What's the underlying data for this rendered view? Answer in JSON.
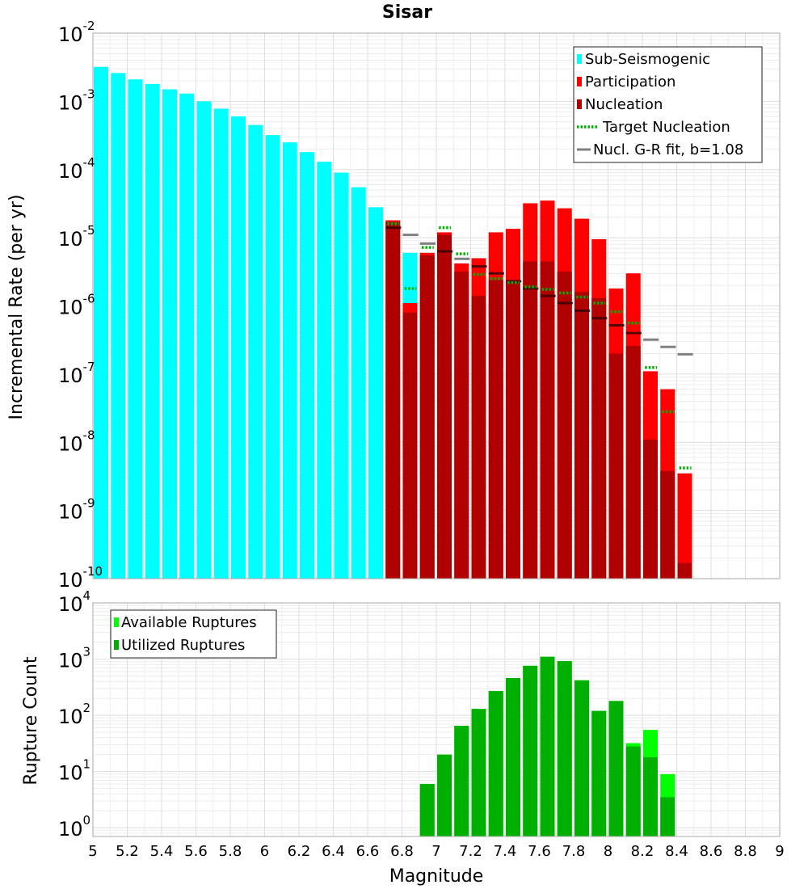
{
  "chart_data": [
    {
      "type": "bar",
      "title": "Sisar",
      "xlabel": "",
      "ylabel": "Incremental Rate (per yr)",
      "yscale": "log",
      "xlim": [
        5,
        9
      ],
      "ylim": [
        1e-10,
        0.01
      ],
      "grid": true,
      "legend_position": "top-right",
      "legend": [
        "Sub-Seismogenic",
        "Participation",
        "Nucleation",
        "Target Nucleation",
        "Nucl. G-R fit, b=1.08"
      ],
      "colors": {
        "sub_seismogenic": "#00ffff",
        "participation": "#ff0000",
        "nucleation": "#b00000",
        "target_nucleation": "#00b000",
        "gr_fit": "#808080"
      },
      "x": [
        5.05,
        5.15,
        5.25,
        5.35,
        5.45,
        5.55,
        5.65,
        5.75,
        5.85,
        5.95,
        6.05,
        6.15,
        6.25,
        6.35,
        6.45,
        6.55,
        6.65,
        6.75,
        6.85,
        6.95,
        7.05,
        7.15,
        7.25,
        7.35,
        7.45,
        7.55,
        7.65,
        7.75,
        7.85,
        7.95,
        8.05,
        8.15,
        8.25,
        8.35,
        8.45
      ],
      "series": [
        {
          "name": "Sub-Seismogenic",
          "values": [
            0.0032,
            0.0026,
            0.0021,
            0.0018,
            0.0015,
            0.0013,
            0.001,
            0.00078,
            0.0006,
            0.00045,
            0.00032,
            0.00025,
            0.00018,
            0.00013,
            9e-05,
            5.5e-05,
            2.8e-05,
            1.7e-05,
            6e-06,
            6e-06,
            null,
            null,
            null,
            null,
            null,
            null,
            null,
            null,
            null,
            null,
            null,
            null,
            null,
            null,
            null
          ]
        },
        {
          "name": "Participation",
          "values": [
            null,
            null,
            null,
            null,
            null,
            null,
            null,
            null,
            null,
            null,
            null,
            null,
            null,
            null,
            null,
            null,
            null,
            1.8e-05,
            1.1e-06,
            6e-06,
            1.2e-05,
            4.2e-06,
            5e-06,
            1.2e-05,
            1.35e-05,
            3.2e-05,
            3.5e-05,
            2.7e-05,
            1.9e-05,
            9.5e-06,
            1.8e-06,
            3e-06,
            1.1e-07,
            6e-08,
            3.5e-09
          ]
        },
        {
          "name": "Nucleation",
          "values": [
            null,
            null,
            null,
            null,
            null,
            null,
            null,
            null,
            null,
            null,
            null,
            null,
            null,
            null,
            null,
            null,
            null,
            1.7e-05,
            8e-07,
            5.5e-06,
            1.1e-05,
            3.2e-06,
            1.4e-06,
            2.4e-06,
            2.2e-06,
            4.5e-06,
            4.5e-06,
            3.2e-06,
            1.6e-06,
            1.3e-06,
            2e-07,
            2.6e-07,
            1.1e-08,
            3.8e-09,
            1.7e-10
          ]
        },
        {
          "name": "Target Nucleation",
          "values": [
            null,
            null,
            null,
            null,
            null,
            null,
            null,
            null,
            null,
            null,
            null,
            null,
            null,
            null,
            null,
            null,
            null,
            1.6e-05,
            1.8e-06,
            7.2e-06,
            1.4e-05,
            5.8e-06,
            2.9e-06,
            2.5e-06,
            2.2e-06,
            1.9e-06,
            1.75e-06,
            1.55e-06,
            1.35e-06,
            1.1e-06,
            8.2e-07,
            5.6e-07,
            1.25e-07,
            2.8e-08,
            4.2e-09
          ]
        },
        {
          "name": "Nucl. G-R fit, b=1.08",
          "values": [
            null,
            null,
            null,
            null,
            null,
            null,
            null,
            null,
            null,
            null,
            null,
            null,
            null,
            null,
            null,
            null,
            null,
            1.4e-05,
            1.1e-05,
            8.2e-06,
            6.3e-06,
            4.9e-06,
            3.8e-06,
            3e-06,
            2.3e-06,
            1.8e-06,
            1.4e-06,
            1.1e-06,
            8.5e-07,
            6.6e-07,
            5.2e-07,
            4e-07,
            3.2e-07,
            2.5e-07,
            1.95e-07
          ]
        }
      ]
    },
    {
      "type": "bar",
      "title": "",
      "xlabel": "Magnitude",
      "ylabel": "Rupture Count",
      "yscale": "log",
      "xlim": [
        5,
        9
      ],
      "ylim": [
        0.7,
        10000
      ],
      "grid": true,
      "legend_position": "top-left",
      "legend": [
        "Available Ruptures",
        "Utilized Ruptures"
      ],
      "colors": {
        "available": "#00ff00",
        "utilized": "#00b000"
      },
      "x": [
        6.95,
        7.05,
        7.15,
        7.25,
        7.35,
        7.45,
        7.55,
        7.65,
        7.75,
        7.85,
        7.95,
        8.05,
        8.15,
        8.25,
        8.35
      ],
      "series": [
        {
          "name": "Available Ruptures",
          "values": [
            6,
            20,
            65,
            130,
            270,
            460,
            760,
            1100,
            920,
            420,
            120,
            180,
            32,
            55,
            9
          ]
        },
        {
          "name": "Utilized Ruptures",
          "values": [
            6,
            20,
            65,
            130,
            270,
            460,
            760,
            1100,
            920,
            420,
            120,
            180,
            28,
            18,
            3.5
          ]
        }
      ]
    }
  ],
  "x_tick_labels": [
    "5",
    "5.2",
    "5.4",
    "5.6",
    "5.8",
    "6",
    "6.2",
    "6.4",
    "6.6",
    "6.8",
    "7",
    "7.2",
    "7.4",
    "7.6",
    "7.8",
    "8",
    "8.2",
    "8.4",
    "8.6",
    "8.8",
    "9"
  ],
  "top_y_ticks": [
    {
      "base": "10",
      "exp": "-10"
    },
    {
      "base": "10",
      "exp": "-9"
    },
    {
      "base": "10",
      "exp": "-8"
    },
    {
      "base": "10",
      "exp": "-7"
    },
    {
      "base": "10",
      "exp": "-6"
    },
    {
      "base": "10",
      "exp": "-5"
    },
    {
      "base": "10",
      "exp": "-4"
    },
    {
      "base": "10",
      "exp": "-3"
    },
    {
      "base": "10",
      "exp": "-2"
    }
  ],
  "bottom_y_ticks": [
    {
      "base": "10",
      "exp": "0"
    },
    {
      "base": "10",
      "exp": "1"
    },
    {
      "base": "10",
      "exp": "2"
    },
    {
      "base": "10",
      "exp": "3"
    },
    {
      "base": "10",
      "exp": "4"
    }
  ]
}
